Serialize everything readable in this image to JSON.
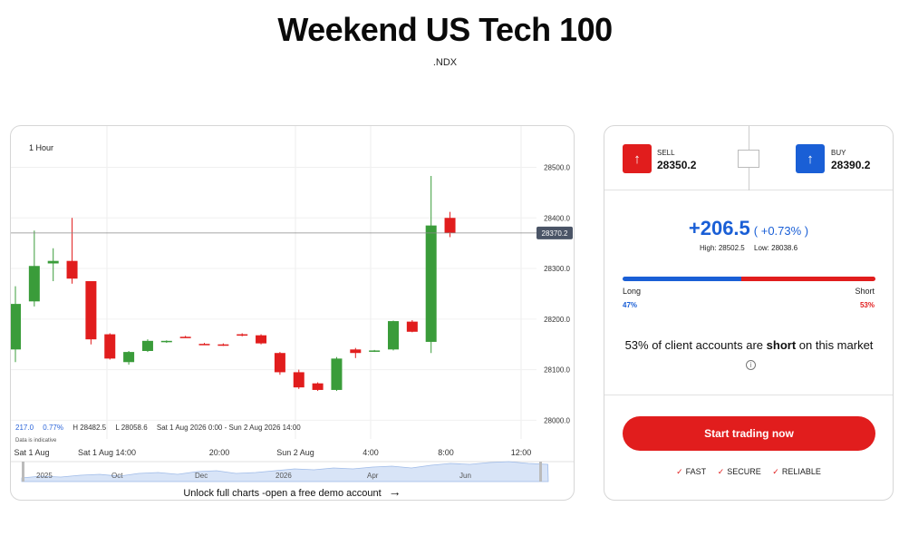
{
  "page": {
    "title": "Weekend US Tech 100",
    "symbol": ".NDX"
  },
  "chart": {
    "interval": "1 Hour",
    "legend": {
      "volume": "217.0",
      "change_pct": "0.77%",
      "high": "H 28482.5",
      "low": "L 28058.6",
      "range": "Sat 1 Aug 2026 0:00 - Sun 2 Aug 2026 14:00"
    },
    "indicative_note": "Data is indicative",
    "current_price_tag": "28370.2",
    "x_labels": [
      "Sat 1 Aug",
      "Sat 1 Aug 14:00",
      "20:00",
      "Sun 2 Aug",
      "4:00",
      "8:00",
      "12:00"
    ],
    "navigator_labels": [
      "2025",
      "Oct",
      "Dec",
      "2026",
      "Apr",
      "Jun"
    ],
    "unlock_text": "Unlock full charts -open a free demo account",
    "colors": {
      "up": "#3a9c3a",
      "down": "#e11d1d",
      "price_line": "#888888",
      "price_tag": "#4a5466"
    }
  },
  "chart_data": {
    "type": "candlestick",
    "y_ticks": [
      28000.0,
      28100.0,
      28200.0,
      28300.0,
      28400.0,
      28500.0
    ],
    "y_tick_labels": [
      "28000.0",
      "28100.0",
      "28200.0",
      "28300.0",
      "28400.0",
      "28500.0"
    ],
    "ylim": [
      27990,
      28560
    ],
    "current_price": 28370.2,
    "candles": [
      {
        "o": 28140,
        "h": 28265,
        "l": 28115,
        "c": 28230
      },
      {
        "o": 28235,
        "h": 28375,
        "l": 28225,
        "c": 28305
      },
      {
        "o": 28310,
        "h": 28340,
        "l": 28275,
        "c": 28315
      },
      {
        "o": 28315,
        "h": 28400,
        "l": 28270,
        "c": 28280
      },
      {
        "o": 28275,
        "h": 28275,
        "l": 28150,
        "c": 28160
      },
      {
        "o": 28170,
        "h": 28172,
        "l": 28120,
        "c": 28122
      },
      {
        "o": 28115,
        "h": 28137,
        "l": 28110,
        "c": 28135
      },
      {
        "o": 28137,
        "h": 28160,
        "l": 28135,
        "c": 28157
      },
      {
        "o": 28155,
        "h": 28158,
        "l": 28153,
        "c": 28157
      },
      {
        "o": 28165,
        "h": 28167,
        "l": 28163,
        "c": 28163
      },
      {
        "o": 28151,
        "h": 28153,
        "l": 28149,
        "c": 28149
      },
      {
        "o": 28150,
        "h": 28152,
        "l": 28147,
        "c": 28148
      },
      {
        "o": 28170,
        "h": 28172,
        "l": 28166,
        "c": 28168
      },
      {
        "o": 28168,
        "h": 28170,
        "l": 28150,
        "c": 28152
      },
      {
        "o": 28133,
        "h": 28135,
        "l": 28090,
        "c": 28095
      },
      {
        "o": 28095,
        "h": 28100,
        "l": 28062,
        "c": 28065
      },
      {
        "o": 28073,
        "h": 28075,
        "l": 28058,
        "c": 28060
      },
      {
        "o": 28060,
        "h": 28125,
        "l": 28058,
        "c": 28122
      },
      {
        "o": 28140,
        "h": 28143,
        "l": 28123,
        "c": 28133
      },
      {
        "o": 28137,
        "h": 28139,
        "l": 28135,
        "c": 28138
      },
      {
        "o": 28140,
        "h": 28197,
        "l": 28138,
        "c": 28196
      },
      {
        "o": 28195,
        "h": 28198,
        "l": 28174,
        "c": 28175
      },
      {
        "o": 28155,
        "h": 28483,
        "l": 28133,
        "c": 28385
      },
      {
        "o": 28400,
        "h": 28412,
        "l": 28362,
        "c": 28370
      }
    ]
  },
  "trade": {
    "sell_label": "SELL",
    "sell_price": "28350.2",
    "buy_label": "BUY",
    "buy_price": "28390.2",
    "change": "+206.5",
    "change_pct": "( +0.73% )",
    "high": "High: 28502.5",
    "low": "Low: 28038.6",
    "long_label": "Long",
    "short_label": "Short",
    "long_pct_text": "47%",
    "short_pct_text": "53%",
    "long_pct": 47,
    "sentiment_prefix": "53% of client accounts are ",
    "sentiment_bold": "short",
    "sentiment_suffix": " on this market",
    "info_icon": "i",
    "cta_label": "Start trading now",
    "features": [
      "FAST",
      "SECURE",
      "RELIABLE"
    ],
    "sell_icon": "arrow-up-icon",
    "buy_icon": "arrow-up-icon",
    "colors": {
      "sell": "#e11d1d",
      "buy": "#1a5fd6"
    }
  }
}
